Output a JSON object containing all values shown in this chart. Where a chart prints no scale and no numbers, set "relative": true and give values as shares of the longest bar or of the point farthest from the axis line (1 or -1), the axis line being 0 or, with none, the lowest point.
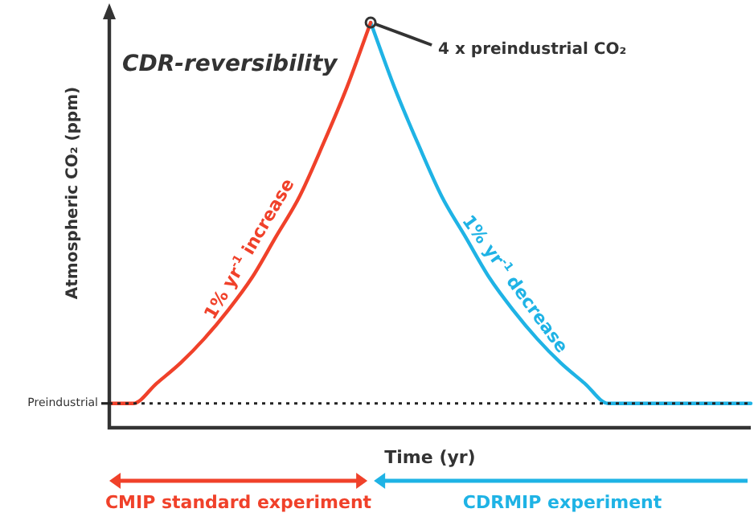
{
  "chart_data": {
    "type": "line",
    "relative": true,
    "title": "CDR-reversibility",
    "xlabel": "Time (yr)",
    "ylabel": "Atmospheric CO₂ (ppm)",
    "categories": [
      null,
      null,
      null,
      null,
      null,
      null,
      null,
      null,
      null,
      null,
      null,
      null,
      null,
      null,
      null,
      null,
      null,
      null,
      null,
      null,
      null,
      null,
      null,
      null,
      null,
      null,
      null,
      null
    ],
    "series": [
      {
        "name": "1% yr$^{-1}$ increase",
        "color": "#f0412a",
        "values": [
          0.06,
          0.06,
          0.11,
          0.16,
          0.22,
          0.29,
          0.37,
          0.47,
          0.57,
          0.7,
          0.84,
          1.0,
          null,
          null,
          null,
          null,
          null,
          null,
          null,
          null,
          null,
          null,
          null,
          null,
          null,
          null,
          null,
          null
        ]
      },
      {
        "name": "1% yr$^{-1}$ decrease",
        "color": "#1fb3e5",
        "values": [
          null,
          null,
          null,
          null,
          null,
          null,
          null,
          null,
          null,
          null,
          null,
          1.0,
          0.84,
          0.7,
          0.57,
          0.47,
          0.37,
          0.29,
          0.22,
          0.16,
          0.11,
          0.06,
          0.06,
          0.06,
          0.06,
          0.06,
          0.06,
          0.06
        ]
      }
    ],
    "ref_lines": [
      {
        "axis": "y",
        "value": 0.06,
        "label": "Preindustrial",
        "line_style": "dotted",
        "color": "#222222"
      }
    ],
    "annotations": [
      "4 x preindustrial CO₂",
      "CMIP standard experiment",
      "CDRMIP experiment"
    ],
    "legend": false,
    "marker": "none",
    "line_style": "solid"
  }
}
